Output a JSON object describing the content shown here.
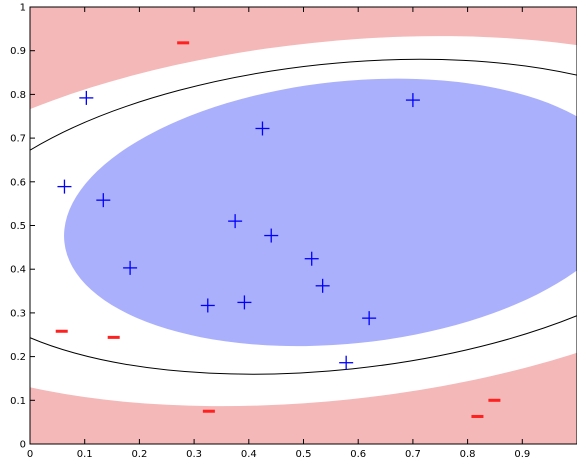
{
  "chart_data": {
    "type": "scatter",
    "title": "",
    "xlabel": "",
    "ylabel": "",
    "xlim": [
      0,
      1
    ],
    "ylim": [
      0,
      1
    ],
    "grid": false,
    "x_ticks": [
      "0",
      "0.1",
      "0.2",
      "0.3",
      "0.4",
      "0.5",
      "0.6",
      "0.7",
      "0.8",
      "0.9"
    ],
    "x_tick_values": [
      0,
      0.1,
      0.2,
      0.3,
      0.4,
      0.5,
      0.6,
      0.7,
      0.8,
      0.9
    ],
    "y_ticks": [
      "0",
      "0.1",
      "0.2",
      "0.3",
      "0.4",
      "0.5",
      "0.6",
      "0.7",
      "0.8",
      "0.9",
      "1"
    ],
    "y_tick_values": [
      0,
      0.1,
      0.2,
      0.3,
      0.4,
      0.5,
      0.6,
      0.7,
      0.8,
      0.9,
      1
    ],
    "colors": {
      "positive_region": "#aab0fb",
      "negative_region": "#f4b8b8",
      "positive_marker": "#0000ff",
      "negative_marker": "#ff2020",
      "boundary": "#000000"
    },
    "regions": {
      "positive_ellipse": {
        "cx": 0.58,
        "cy": 0.53,
        "rx": 0.52,
        "ry": 0.3,
        "angle_deg": -6
      },
      "boundary_ellipse": {
        "cx": 0.56,
        "cy": 0.52,
        "rx": 0.71,
        "ry": 0.35,
        "angle_deg": -6
      },
      "negative_boundary_ellipse": {
        "cx": 0.55,
        "cy": 0.51,
        "rx": 0.87,
        "ry": 0.41,
        "angle_deg": -6
      }
    },
    "series": [
      {
        "marker": "+",
        "points": [
          {
            "x": 0.103,
            "y": 0.792
          },
          {
            "x": 0.063,
            "y": 0.589
          },
          {
            "x": 0.134,
            "y": 0.558
          },
          {
            "x": 0.183,
            "y": 0.403
          },
          {
            "x": 0.325,
            "y": 0.317
          },
          {
            "x": 0.375,
            "y": 0.51
          },
          {
            "x": 0.392,
            "y": 0.324
          },
          {
            "x": 0.425,
            "y": 0.722
          },
          {
            "x": 0.441,
            "y": 0.477
          },
          {
            "x": 0.515,
            "y": 0.424
          },
          {
            "x": 0.535,
            "y": 0.362
          },
          {
            "x": 0.578,
            "y": 0.186
          },
          {
            "x": 0.62,
            "y": 0.288
          },
          {
            "x": 0.7,
            "y": 0.787
          }
        ]
      },
      {
        "marker": "-",
        "points": [
          {
            "x": 0.28,
            "y": 0.918
          },
          {
            "x": 0.058,
            "y": 0.258
          },
          {
            "x": 0.153,
            "y": 0.244
          },
          {
            "x": 0.327,
            "y": 0.075
          },
          {
            "x": 0.818,
            "y": 0.063
          },
          {
            "x": 0.849,
            "y": 0.1
          }
        ]
      }
    ]
  }
}
